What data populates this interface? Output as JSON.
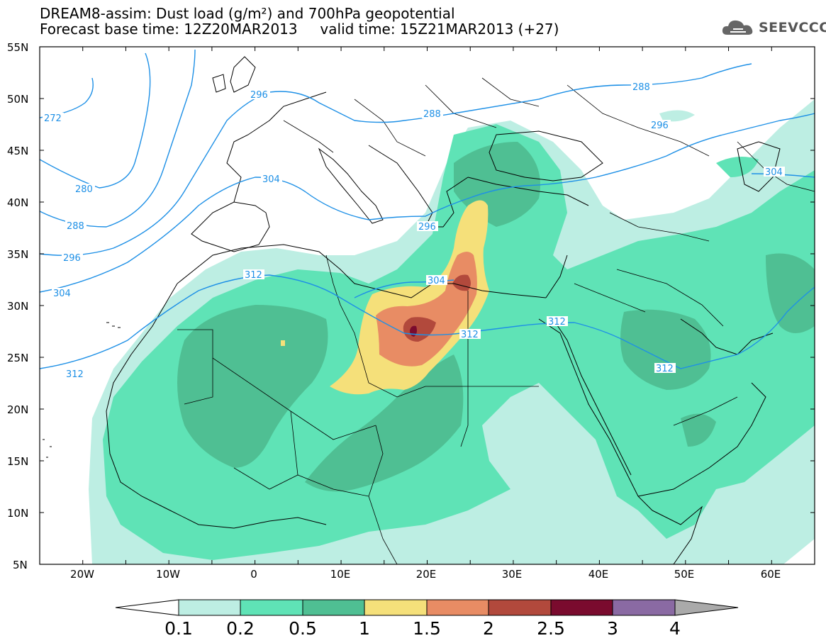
{
  "title": {
    "line1": "DREAM8-assim: Dust load (g/m²) and 700hPa geopotential",
    "line2": "Forecast base time: 12Z20MAR2013     valid time: 15Z21MAR2013 (+27)"
  },
  "logo": {
    "text": "SEEVCCC",
    "icon": "cloud-icon"
  },
  "axes": {
    "lat_labels": [
      "55N",
      "50N",
      "45N",
      "40N",
      "35N",
      "30N",
      "25N",
      "20N",
      "15N",
      "10N",
      "5N"
    ],
    "lon_labels": [
      "20W",
      "10W",
      "0",
      "10E",
      "20E",
      "30E",
      "40E",
      "50E",
      "60E"
    ],
    "lat_range": [
      5,
      55
    ],
    "lon_range": [
      -25,
      65
    ]
  },
  "contours": {
    "units": "dam",
    "labels": [
      "272",
      "280",
      "288",
      "296",
      "304",
      "312",
      "296",
      "304",
      "312",
      "288",
      "296",
      "304",
      "288",
      "296",
      "304",
      "312",
      "312",
      "312"
    ]
  },
  "colorbar": {
    "levels": [
      "0.1",
      "0.2",
      "0.5",
      "1",
      "1.5",
      "2",
      "2.5",
      "3",
      "4"
    ],
    "colors": [
      "#ffffff",
      "#bdeee3",
      "#5fe3b6",
      "#4fbf93",
      "#f5e07a",
      "#e88c64",
      "#b2493c",
      "#7a0b2e",
      "#8a6aa3",
      "#aaaaaa"
    ]
  },
  "colors": {
    "contour": "#1e90e6",
    "border": "#000000",
    "dust_01": "#bdeee3",
    "dust_02": "#5fe3b6",
    "dust_05": "#4fbf93",
    "dust_1": "#f5e07a",
    "dust_15": "#e88c64",
    "dust_2": "#b2493c",
    "dust_25": "#7a0b2e"
  }
}
